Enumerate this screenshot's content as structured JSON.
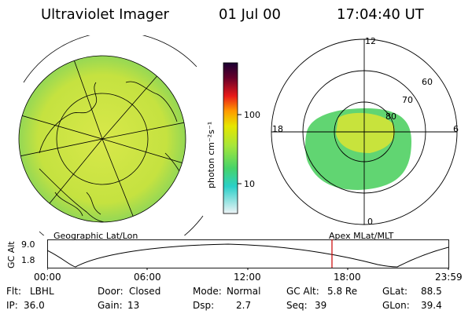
{
  "header": {
    "instrument": "Ultraviolet Imager",
    "date": "01 Jul 00",
    "time": "17:04:40 UT"
  },
  "colorbar": {
    "unit_label": "photon cm⁻²s⁻¹",
    "ticks": [
      "100",
      "10"
    ]
  },
  "polar_plot": {
    "mlt_labels": {
      "top": "12",
      "left": "18",
      "right": "6",
      "bottom": "0"
    },
    "lat_labels": [
      "60",
      "70",
      "80"
    ]
  },
  "panels": {
    "left_caption": "Geographic Lat/Lon",
    "right_caption": "Apex MLat/MLT"
  },
  "altitude_strip": {
    "axis_label": "GC Alt",
    "y_ticks": [
      "9.0",
      "1.8"
    ],
    "x_ticks": [
      "00:00",
      "06:00",
      "12:00",
      "18:00",
      "23:59"
    ]
  },
  "footer": {
    "rows": [
      [
        {
          "label": "Flt:",
          "value": "LBHL"
        },
        {
          "label": "Door:",
          "value": "Closed"
        },
        {
          "label": "Mode:",
          "value": "Normal"
        },
        {
          "label": "GC Alt:",
          "value": "5.8 Re"
        },
        {
          "label": "GLat:",
          "value": "88.5"
        }
      ],
      [
        {
          "label": "IP:",
          "value": "36.0"
        },
        {
          "label": "Gain:",
          "value": "13"
        },
        {
          "label": "Dsp:",
          "value": "2.7"
        },
        {
          "label": "Seq:",
          "value": "39"
        },
        {
          "label": "GLon:",
          "value": "39.4"
        }
      ]
    ]
  },
  "colors": {
    "background": "#ffffff",
    "image_fill": "#c4e33c",
    "auroral_fill": "#59d36a",
    "marker": "#cc0000"
  }
}
